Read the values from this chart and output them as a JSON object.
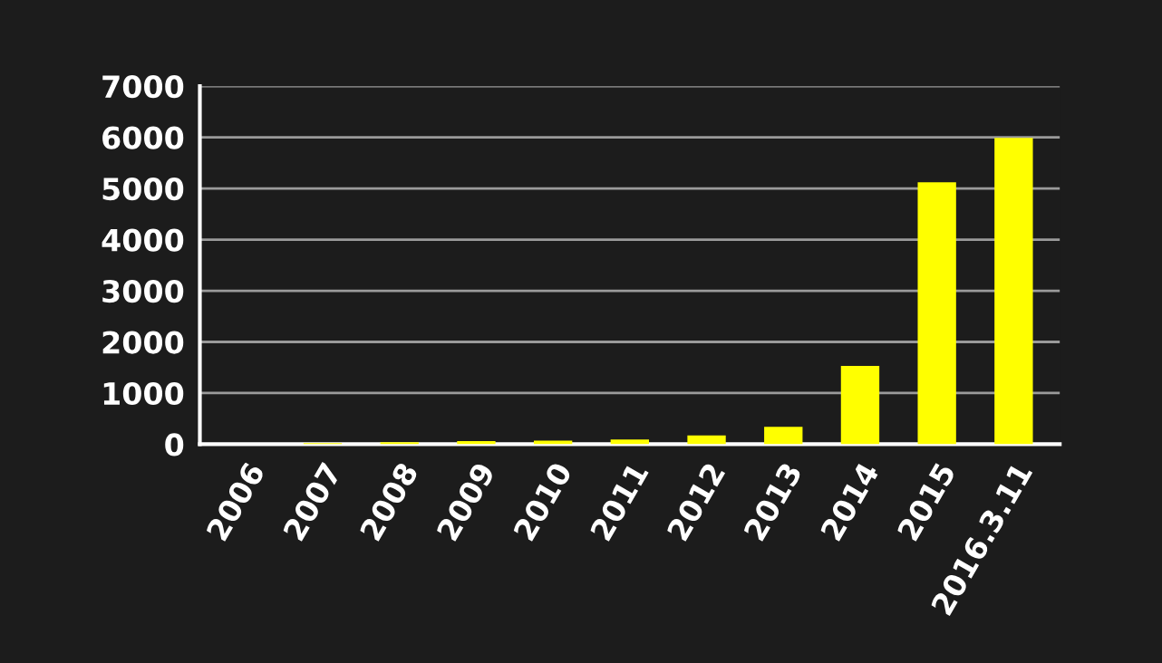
{
  "chart_data": {
    "type": "bar",
    "categories": [
      "2006",
      "2007",
      "2008",
      "2009",
      "2010",
      "2011",
      "2012",
      "2013",
      "2014",
      "2015",
      "2016.3.11"
    ],
    "values": [
      null,
      20,
      40,
      60,
      70,
      90,
      170,
      340,
      1530,
      5120,
      5990
    ],
    "color": "#ffff00",
    "ylim": [
      0,
      7000
    ],
    "yticks": [
      0,
      1000,
      2000,
      3000,
      4000,
      5000,
      6000,
      7000
    ],
    "grid": "y",
    "legend": false
  }
}
